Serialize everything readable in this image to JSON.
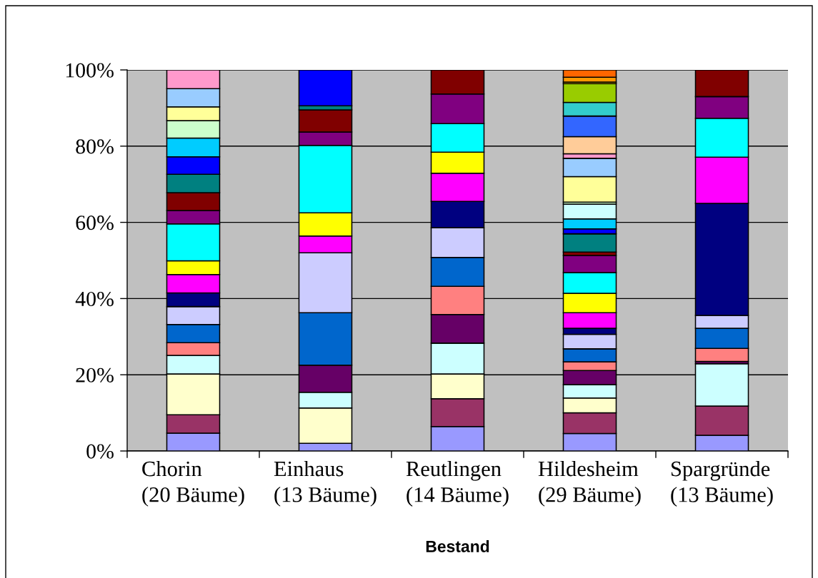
{
  "chart_data": {
    "type": "bar",
    "stacked": true,
    "categories": [
      "Chorin\n(20 Bäume)",
      "Einhaus\n(13 Bäume)",
      "Reutlingen\n(14 Bäume)",
      "Hildesheim\n(29 Bäume)",
      "Spargründe\n(13 Bäume)"
    ],
    "xlabel": "Bestand",
    "ylim": [
      0,
      100
    ],
    "yticks": [
      {
        "value": 0,
        "label": "0%"
      },
      {
        "value": 20,
        "label": "20%"
      },
      {
        "value": 40,
        "label": "40%"
      },
      {
        "value": 60,
        "label": "60%"
      },
      {
        "value": 80,
        "label": "80%"
      },
      {
        "value": 100,
        "label": "100%"
      }
    ],
    "grid": "y",
    "series": [
      {
        "color": "#9999ff",
        "values": [
          4.7,
          2.0,
          6.4,
          4.6,
          4.1
        ]
      },
      {
        "color": "#993366",
        "values": [
          4.8,
          null,
          7.3,
          5.4,
          7.7
        ]
      },
      {
        "color": "#ffffcc",
        "values": [
          10.7,
          9.3,
          6.5,
          3.9,
          null
        ]
      },
      {
        "color": "#ccffff",
        "values": [
          4.9,
          4.1,
          8.1,
          3.5,
          11.1
        ]
      },
      {
        "color": "#660066",
        "values": [
          null,
          7.1,
          7.5,
          3.7,
          0.6
        ]
      },
      {
        "color": "#ff8080",
        "values": [
          3.3,
          null,
          7.4,
          2.3,
          3.4
        ]
      },
      {
        "color": "#0066cc",
        "values": [
          4.8,
          13.8,
          7.6,
          3.4,
          5.3
        ]
      },
      {
        "color": "#ccccff",
        "values": [
          4.7,
          15.7,
          7.8,
          3.8,
          3.4
        ]
      },
      {
        "color": "#000080",
        "values": [
          3.6,
          null,
          6.9,
          1.6,
          29.4
        ]
      },
      {
        "color": "#ff00ff",
        "values": [
          4.8,
          4.4,
          7.4,
          4.1,
          12.1
        ]
      },
      {
        "color": "#ffff00",
        "values": [
          3.6,
          6.1,
          5.5,
          5.1,
          null
        ]
      },
      {
        "color": "#00ffff",
        "values": [
          9.7,
          17.7,
          7.5,
          5.4,
          10.2
        ]
      },
      {
        "color": "#800080",
        "values": [
          3.5,
          3.5,
          7.8,
          4.5,
          5.7
        ]
      },
      {
        "color": "#800000",
        "values": [
          4.7,
          5.8,
          6.3,
          0.9,
          7.0
        ]
      },
      {
        "color": "#008080",
        "values": [
          4.8,
          1.1,
          null,
          4.8,
          null
        ]
      },
      {
        "color": "#0000ff",
        "values": [
          4.6,
          9.4,
          null,
          1.3,
          null
        ]
      },
      {
        "color": "#00ccff",
        "values": [
          4.9,
          null,
          null,
          2.6,
          null
        ]
      },
      {
        "color": "#ccffff",
        "values": [
          null,
          null,
          null,
          3.9,
          null
        ]
      },
      {
        "color": "#ccffcc",
        "values": [
          4.6,
          null,
          null,
          0.5,
          null
        ]
      },
      {
        "color": "#ffff99",
        "values": [
          3.6,
          null,
          null,
          6.7,
          null
        ]
      },
      {
        "color": "#99ccff",
        "values": [
          4.8,
          null,
          null,
          4.8,
          null
        ]
      },
      {
        "color": "#ff99cc",
        "values": [
          4.9,
          null,
          null,
          1.2,
          null
        ]
      },
      {
        "color": "#ffcc99",
        "values": [
          null,
          null,
          null,
          4.5,
          null
        ]
      },
      {
        "color": "#3366ff",
        "values": [
          null,
          null,
          null,
          5.4,
          null
        ]
      },
      {
        "color": "#33cccc",
        "values": [
          null,
          null,
          null,
          3.6,
          null
        ]
      },
      {
        "color": "#99cc00",
        "values": [
          null,
          null,
          null,
          4.9,
          null
        ]
      },
      {
        "color": "#ffcc00",
        "values": [
          null,
          null,
          null,
          0.4,
          null
        ]
      },
      {
        "color": "#ff9900",
        "values": [
          null,
          null,
          null,
          1.3,
          null
        ]
      },
      {
        "color": "#ff6600",
        "values": [
          null,
          null,
          null,
          1.9,
          null
        ]
      }
    ]
  }
}
